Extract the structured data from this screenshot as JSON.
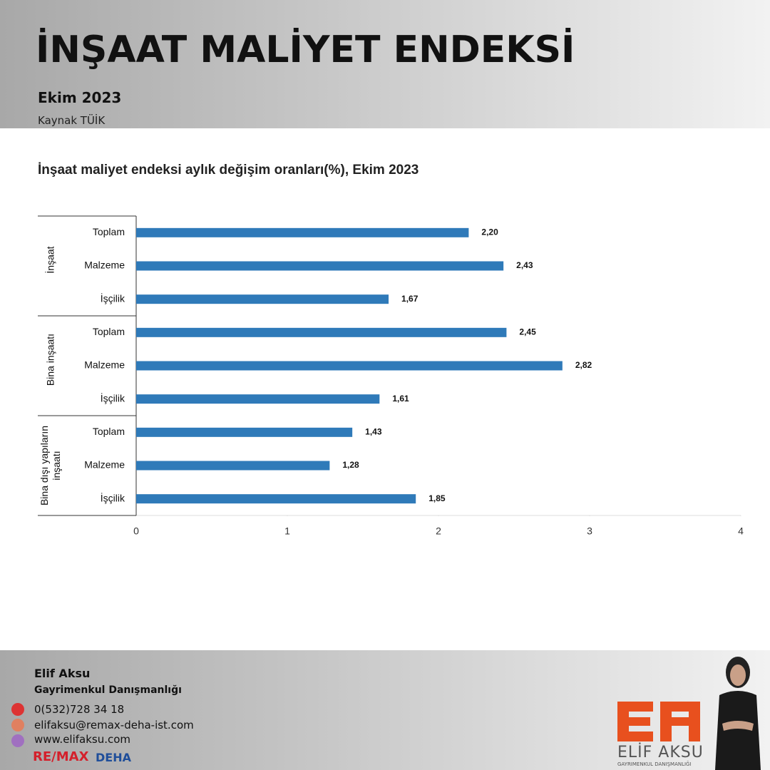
{
  "header": {
    "title": "İNŞAAT MALİYET ENDEKSİ",
    "subtitle": "Ekim 2023",
    "source": "Kaynak TÜİK"
  },
  "chart_data": {
    "type": "hbar",
    "title": "İnşaat maliyet endeksi aylık değişim oranları(%), Ekim 2023",
    "groups": [
      "İnşaat",
      "Bina inşaatı",
      "Bina dışı yapıların inşaatı"
    ],
    "categories": [
      "Toplam",
      "Malzeme",
      "İşçilik",
      "Toplam",
      "Malzeme",
      "İşçilik",
      "Toplam",
      "Malzeme",
      "İşçilik"
    ],
    "values": [
      2.2,
      2.43,
      1.67,
      2.45,
      2.82,
      1.61,
      1.43,
      1.28,
      1.85
    ],
    "value_labels": [
      "2,20",
      "2,43",
      "1,67",
      "2,45",
      "2,82",
      "1,61",
      "1,43",
      "1,28",
      "1,85"
    ],
    "color": "#2f7ab9",
    "xlim": [
      0,
      4
    ],
    "xticks": [
      0,
      1,
      2,
      3,
      4
    ]
  },
  "footer": {
    "name": "Elif Aksu",
    "role": "Gayrimenkul Danışmanlığı",
    "phone": "0(532)728 34 18",
    "email": "elifaksu@remax-deha-ist.com",
    "website": "www.elifaksu.com",
    "brand": "RE/MAX",
    "brand_office": "DEHA",
    "logo_name": "ELİF AKSU",
    "logo_tagline": "GAYRIMENKUL DANIŞMANLIĞI"
  }
}
